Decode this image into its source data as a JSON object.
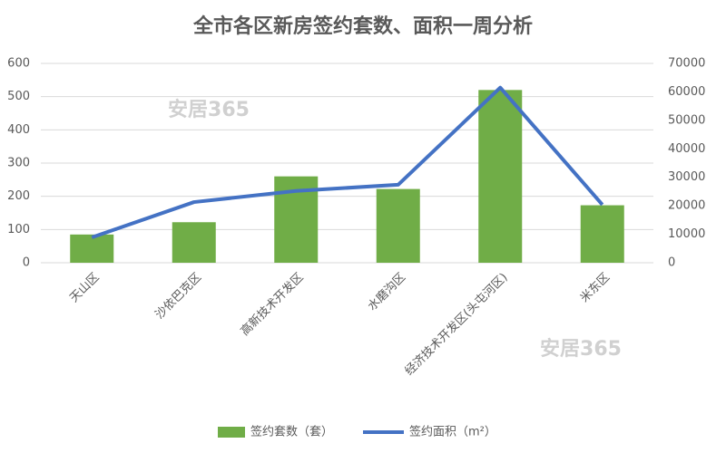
{
  "chart_data": {
    "type": "combo",
    "title": "全市各区新房签约套数、面积一周分析",
    "categories": [
      "天山区",
      "沙依巴克区",
      "高新技术开发区",
      "水磨沟区",
      "经济技术开发区(头屯河区)",
      "米东区"
    ],
    "series": [
      {
        "name": "签约套数（套）",
        "type": "bar",
        "color": "#70ad47",
        "values": [
          85,
          122,
          260,
          222,
          520,
          173
        ]
      },
      {
        "name": "签约面积（m²）",
        "type": "line",
        "axis": "y2",
        "color": "#4472c4",
        "values": [
          8900,
          21300,
          25200,
          27400,
          61500,
          20400
        ]
      }
    ],
    "ylim": [
      0,
      600
    ],
    "yticks": [
      0,
      100,
      200,
      300,
      400,
      500,
      600
    ],
    "y2lim": [
      0,
      70000
    ],
    "y2ticks": [
      0,
      10000,
      20000,
      30000,
      40000,
      50000,
      60000,
      70000
    ],
    "grid": true,
    "legend": "bottom",
    "annotations": [
      "安居365",
      "安居365"
    ]
  }
}
